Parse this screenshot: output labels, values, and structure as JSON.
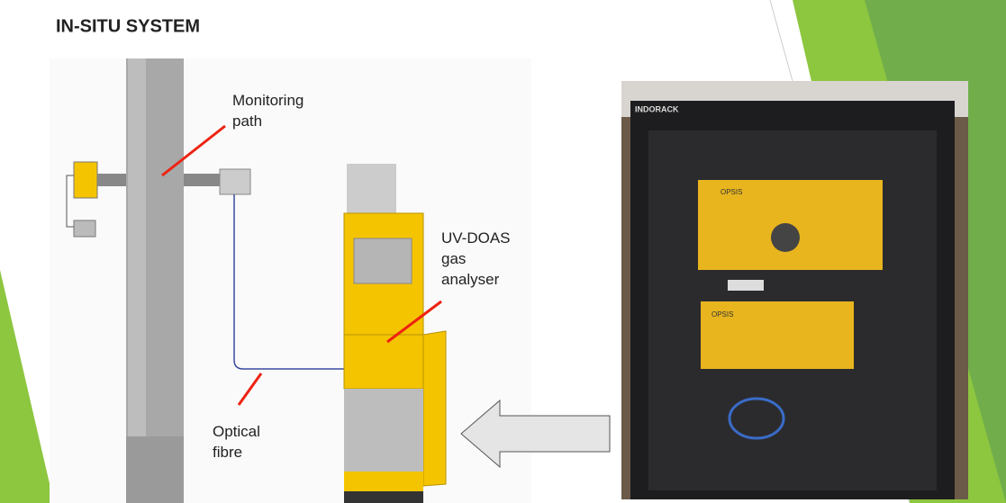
{
  "header": {
    "title": "IN-SITU SYSTEM"
  },
  "diagram": {
    "labels": {
      "monitoring_path": [
        "Monitoring",
        "path"
      ],
      "analyser": [
        "UV-DOAS",
        "gas",
        "analyser"
      ],
      "optical_fibre": [
        "Optical",
        "fibre"
      ]
    }
  },
  "photo": {
    "rack_brand": "INDORACK",
    "unit_brand_top": "OPSIS",
    "unit_brand_bottom": "OPSIS"
  }
}
